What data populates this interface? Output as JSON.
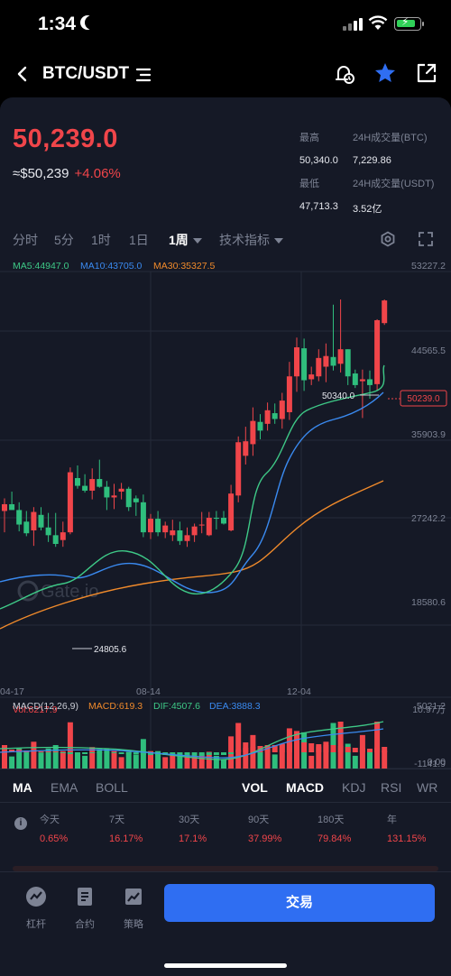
{
  "status_bar": {
    "time": "1:34"
  },
  "nav": {
    "pair": "BTC/USDT"
  },
  "ticker": {
    "price": "50,239.0",
    "usd_price": "≈$50,239",
    "change": "+4.06%",
    "high_label": "最高",
    "high": "50,340.0",
    "low_label": "最低",
    "low": "47,713.3",
    "vol_btc_label": "24H成交量(BTC)",
    "vol_btc": "7,229.86",
    "vol_usdt_label": "24H成交量(USDT)",
    "vol_usdt": "3.52亿"
  },
  "timeframes": [
    "分时",
    "5分",
    "1时",
    "1日",
    "1周",
    "技术指标"
  ],
  "active_timeframe": "1周",
  "chart": {
    "ma_legend": [
      "MA5:44947.0",
      "MA10:43705.0",
      "MA30:35327.5"
    ],
    "y_labels": [
      "53227.2",
      "44565.5",
      "35903.9",
      "27242.2",
      "18580.6"
    ],
    "x_labels": [
      "04-17",
      "08-14",
      "12-04"
    ],
    "high_marker": "50340.0",
    "low_marker": "24805.6",
    "price_tag": "50239.0",
    "watermark": "Gate.io",
    "vol_label": "Vol:6217.9",
    "vol_max": "10.97万",
    "vol_min": "0.00",
    "macd_legend": [
      "MACD(12,26,9)",
      "MACD:619.3",
      "DIF:4507.6",
      "DEA:3888.3"
    ],
    "macd_max": "5021.2",
    "macd_min": "-1141.9"
  },
  "indicator_tabs": [
    "MA",
    "EMA",
    "BOLL",
    "VOL",
    "MACD",
    "KDJ",
    "RSI",
    "WR"
  ],
  "returns": [
    {
      "label": "今天",
      "value": "0.65%"
    },
    {
      "label": "7天",
      "value": "16.17%"
    },
    {
      "label": "30天",
      "value": "17.1%"
    },
    {
      "label": "90天",
      "value": "37.99%"
    },
    {
      "label": "180天",
      "value": "79.84%"
    },
    {
      "label": "年",
      "value": "131.15%"
    }
  ],
  "bottom_bar": {
    "items": [
      "杠杆",
      "合约",
      "策略"
    ],
    "trade": "交易"
  },
  "colors": {
    "up": "#f0454a",
    "down": "#2fbe7d",
    "ma5": "#3ec987",
    "ma10": "#3a8af0",
    "ma30": "#f08a2b",
    "accent": "#2f6ef2"
  },
  "chart_data": {
    "type": "candlestick",
    "y_range": [
      18580.6,
      53227.2
    ],
    "candles": [
      [
        28500,
        29800,
        26300,
        29200
      ],
      [
        29200,
        30500,
        28700,
        28600
      ],
      [
        28600,
        29400,
        26400,
        27100
      ],
      [
        27400,
        28500,
        25900,
        26200
      ],
      [
        26500,
        28900,
        24900,
        28400
      ],
      [
        28100,
        28900,
        26500,
        26800
      ],
      [
        26800,
        28300,
        25300,
        26000
      ],
      [
        26000,
        28300,
        24800,
        25100
      ],
      [
        25500,
        27400,
        24805.6,
        26300
      ],
      [
        26300,
        33000,
        26100,
        32500
      ],
      [
        31900,
        33200,
        30800,
        31100
      ],
      [
        31100,
        32300,
        30400,
        30600
      ],
      [
        30600,
        32900,
        29700,
        31800
      ],
      [
        31800,
        33800,
        30900,
        31000
      ],
      [
        31000,
        31600,
        28600,
        29900
      ],
      [
        29900,
        31300,
        28700,
        30100
      ],
      [
        30500,
        31400,
        29700,
        30800
      ],
      [
        30800,
        31000,
        28500,
        28900
      ],
      [
        29800,
        30100,
        28000,
        29400
      ],
      [
        29400,
        30200,
        25800,
        26300
      ],
      [
        26300,
        28200,
        25600,
        27700
      ],
      [
        27700,
        28500,
        25900,
        26300
      ],
      [
        26300,
        27400,
        25700,
        27000
      ],
      [
        26000,
        27600,
        25400,
        26500
      ],
      [
        26500,
        27400,
        25000,
        25400
      ],
      [
        25400,
        26800,
        24800,
        26000
      ],
      [
        26000,
        27200,
        25300,
        26900
      ],
      [
        27000,
        28400,
        26200,
        27100
      ],
      [
        26000,
        28400,
        25900,
        27800
      ],
      [
        27800,
        28500,
        26600,
        27700
      ],
      [
        27800,
        28500,
        27100,
        27200
      ],
      [
        26500,
        31200,
        26400,
        30300
      ],
      [
        30100,
        36200,
        29400,
        35600
      ],
      [
        34200,
        37200,
        33300,
        35700
      ],
      [
        35400,
        39200,
        34200,
        37800
      ],
      [
        37700,
        38500,
        35900,
        36800
      ],
      [
        37500,
        39700,
        36800,
        38900
      ],
      [
        38600,
        39600,
        37500,
        38000
      ],
      [
        38000,
        40700,
        37000,
        39900
      ],
      [
        38700,
        43900,
        37900,
        42400
      ],
      [
        42400,
        46400,
        40800,
        45400
      ],
      [
        45300,
        46300,
        40900,
        42000
      ],
      [
        42100,
        43400,
        41500,
        42600
      ],
      [
        42400,
        45200,
        41900,
        44300
      ],
      [
        43400,
        45800,
        41800,
        44500
      ],
      [
        44400,
        49800,
        43000,
        43500
      ],
      [
        43700,
        50340,
        42800,
        45200
      ],
      [
        45200,
        45200,
        41500,
        42400
      ],
      [
        42700,
        43100,
        41200,
        41500
      ],
      [
        41900,
        43100,
        38100,
        42100
      ],
      [
        42100,
        43000,
        40100,
        41500
      ],
      [
        41600,
        48300,
        40900,
        48200
      ],
      [
        47900,
        50340,
        47713.3,
        50239
      ]
    ]
  }
}
